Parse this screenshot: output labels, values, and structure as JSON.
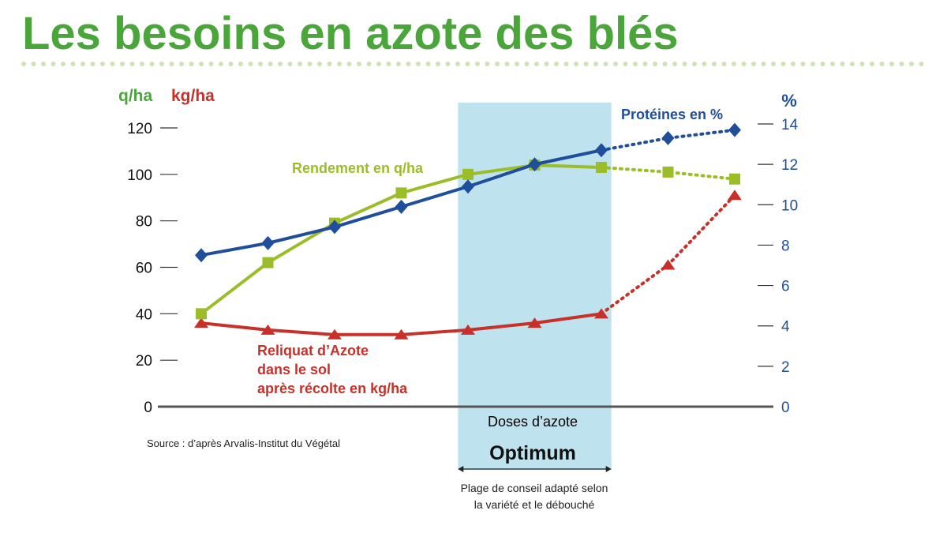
{
  "chart_data": {
    "type": "line",
    "title": "Les besoins en azote des blés",
    "xlabel": "Doses d’azote",
    "left_axis_units": [
      "q/ha",
      "kg/ha"
    ],
    "right_axis_unit": "%",
    "y_left": {
      "ticks": [
        0,
        20,
        40,
        60,
        80,
        100,
        120
      ],
      "range": [
        0,
        120
      ]
    },
    "y_right": {
      "ticks": [
        0,
        2,
        4,
        6,
        8,
        10,
        12,
        14
      ],
      "range": [
        0,
        14
      ]
    },
    "x_points": [
      1,
      2,
      3,
      4,
      5,
      6,
      7,
      8,
      9
    ],
    "solid_until_point": 7,
    "series": [
      {
        "name": "Protéines en %",
        "axis": "right",
        "color": "#1f4e9c",
        "marker": "diamond",
        "values": [
          7.5,
          8.1,
          8.9,
          9.9,
          10.9,
          12.0,
          12.7,
          13.3,
          13.7
        ]
      },
      {
        "name": "Rendement en q/ha",
        "axis": "left",
        "color": "#9cbd2a",
        "marker": "square",
        "values": [
          40,
          62,
          79,
          92,
          100,
          104,
          103,
          101,
          98
        ]
      },
      {
        "name": "Reliquat d’Azote dans le sol après récolte en kg/ha",
        "name_lines": [
          "Reliquat d’Azote",
          "dans le sol",
          "après récolte en kg/ha"
        ],
        "axis": "left",
        "color": "#c8312a",
        "marker": "triangle",
        "values": [
          36,
          33,
          31,
          31,
          33,
          36,
          40,
          61,
          91
        ]
      }
    ],
    "optimum_band": {
      "label": "Optimum",
      "x_range": [
        4.85,
        7.15
      ],
      "color": "#bfe3ee",
      "caption_lines": [
        "Plage de conseil adapté selon",
        "la variété et le débouché"
      ]
    },
    "source": "Source : d’après Arvalis-Institut du Végétal",
    "colors": {
      "title": "#4aa63a",
      "dots": "#cfe2b5",
      "axis": "#555555"
    }
  }
}
